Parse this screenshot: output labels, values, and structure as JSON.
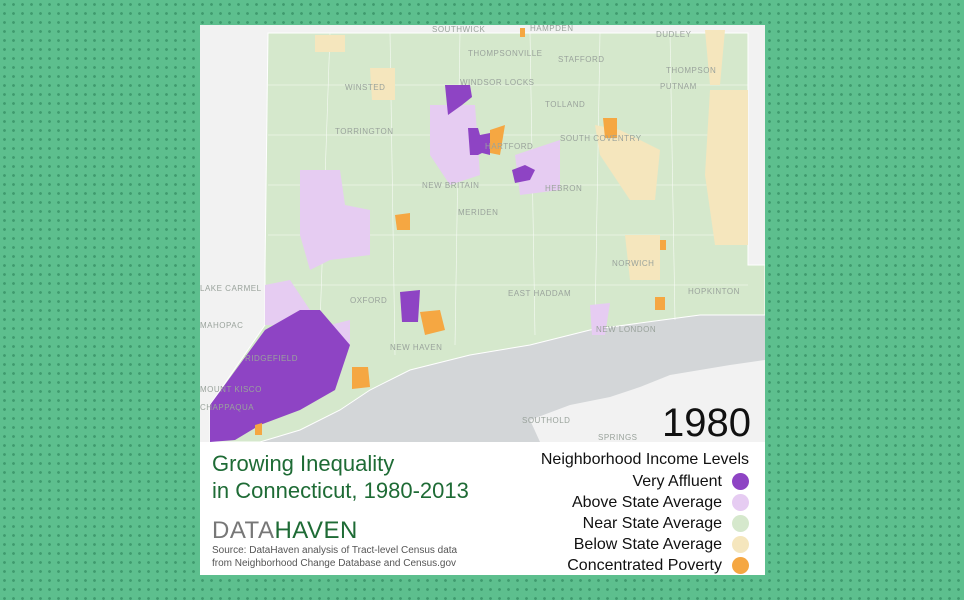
{
  "map": {
    "year": "1980",
    "town_labels": [
      "SOUTHWICK",
      "HAMPDEN",
      "DUDLEY",
      "THOMPSONVILLE",
      "STAFFORD",
      "THOMPSON",
      "PUTNAM",
      "WINSTED",
      "TORRINGTON",
      "WINDSOR LOCKS",
      "TOLLAND",
      "SOUTH COVENTRY",
      "HARTFORD",
      "NEW BRITAIN",
      "HEBRON",
      "MERIDEN",
      "NORWICH",
      "EAST HADDAM",
      "OXFORD",
      "NEW HAVEN",
      "NEW LONDON",
      "LAKE CARMEL",
      "MAHOPAC",
      "RIDGEFIELD",
      "MOUNT KISCO",
      "CHAPPAQUA",
      "SOUTHOLD",
      "SPRINGS",
      "HOPKINTON"
    ]
  },
  "caption": {
    "title_line1": "Growing Inequality",
    "title_line2": "in Connecticut, 1980-2013",
    "logo_part1": "DATA",
    "logo_part2": "HAVEN",
    "source_line1": "Source: DataHaven analysis of Tract-level Census data",
    "source_line2": "from Neighborhood Change Database and Census.gov"
  },
  "legend": {
    "title": "Neighborhood Income Levels",
    "items": [
      {
        "label": "Very Affluent",
        "color": "#8e44c4"
      },
      {
        "label": "Above State Average",
        "color": "#e6ccf2"
      },
      {
        "label": "Near State Average",
        "color": "#d5e8cc"
      },
      {
        "label": "Below State Average",
        "color": "#f5e6bd"
      },
      {
        "label": "Concentrated Poverty",
        "color": "#f5a742"
      }
    ]
  },
  "colors": {
    "background": "#5dbf8e",
    "sea": "#d3d6d8",
    "land_outside": "#f2f2f2",
    "title_green": "#1e6b35"
  }
}
